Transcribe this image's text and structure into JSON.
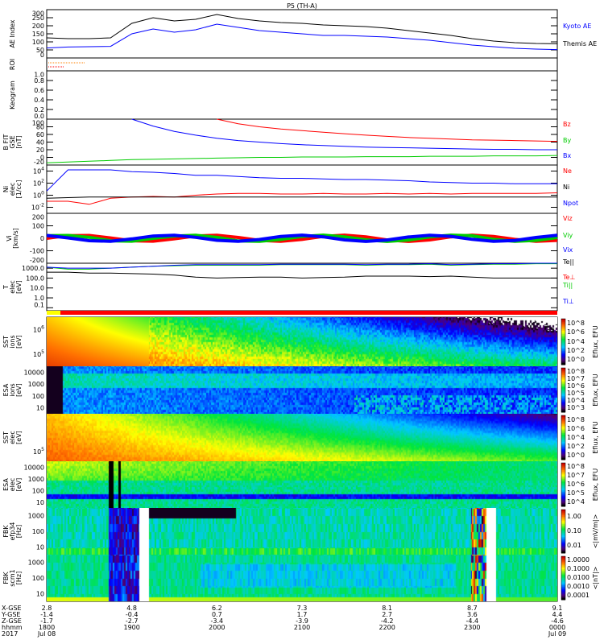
{
  "title": "P5 (TH-A)",
  "chart_data": {
    "type": "line",
    "x_label": "hhmm",
    "time_ticks": [
      "1800",
      "1900",
      "2000",
      "2100",
      "2200",
      "2300",
      "0000"
    ],
    "date_ticks": [
      "Jul 08",
      "",
      "",
      "",
      "",
      "",
      "Jul 09"
    ],
    "year": "2017",
    "orbit_rows": [
      {
        "label": "X-GSE",
        "values": [
          "2.8",
          "4.8",
          "6.2",
          "7.3",
          "8.1",
          "8.7",
          "9.1"
        ]
      },
      {
        "label": "Y-GSE",
        "values": [
          "-1.4",
          "-0.4",
          "0.7",
          "1.7",
          "2.7",
          "3.6",
          "4.4"
        ]
      },
      {
        "label": "Z-GSE",
        "values": [
          "-1.7",
          "-2.7",
          "-3.4",
          "-3.9",
          "-4.2",
          "-4.4",
          "-4.6"
        ]
      },
      {
        "label": "hhmm",
        "values": [
          "1800",
          "1900",
          "2000",
          "2100",
          "2200",
          "2300",
          "0000"
        ]
      },
      {
        "label": "2017",
        "values": [
          "Jul 08",
          "",
          "",
          "",
          "",
          "",
          "Jul 09"
        ]
      }
    ],
    "hours_x": [
      18,
      18.25,
      18.5,
      18.75,
      19,
      19.25,
      19.5,
      19.75,
      20,
      20.25,
      20.5,
      20.75,
      21,
      21.25,
      21.5,
      21.75,
      22,
      22.25,
      22.5,
      22.75,
      23,
      23.25,
      23.5,
      23.75,
      24
    ],
    "panels": [
      {
        "id": "ae",
        "ylabel": "AE Index",
        "scale": "lin",
        "ylim": [
          0,
          300
        ],
        "ticks": [
          "0",
          "50",
          "100",
          "150",
          "200",
          "250",
          "300"
        ],
        "series": [
          {
            "name": "Kyoto AE",
            "color": "#0000ff",
            "values": [
              62,
              68,
              70,
              72,
              150,
              180,
              160,
              175,
              210,
              190,
              170,
              160,
              150,
              140,
              140,
              135,
              130,
              120,
              110,
              95,
              80,
              70,
              60,
              55,
              52
            ]
          },
          {
            "name": "Themis AE",
            "color": "#000000",
            "values": [
              125,
              120,
              120,
              125,
              215,
              250,
              230,
              240,
              270,
              245,
              230,
              220,
              215,
              205,
              200,
              195,
              185,
              170,
              155,
              140,
              120,
              105,
              95,
              90,
              88
            ]
          }
        ]
      },
      {
        "id": "roi",
        "ylabel": "ROI",
        "scale": "lin",
        "ylim": [
          0,
          1
        ],
        "ticks": [],
        "series": []
      },
      {
        "id": "keogram",
        "ylabel": "Keogram",
        "scale": "lin",
        "ylim": [
          0,
          1
        ],
        "ticks": [
          "0.0",
          "0.2",
          "0.4",
          "0.6",
          "0.8",
          "1.0"
        ],
        "series": []
      },
      {
        "id": "bfit",
        "ylabel": "B FIT",
        "ylabel2": "GSE",
        "ylabel3": "[nT]",
        "scale": "lin",
        "ylim": [
          -20,
          100
        ],
        "ticks": [
          "-20",
          "0",
          "20",
          "40",
          "60",
          "80",
          "100"
        ],
        "series": [
          {
            "name": "Bz",
            "color": "#ff0000",
            "values": [
              null,
              null,
              null,
              null,
              null,
              null,
              null,
              null,
              100,
              88,
              80,
              74,
              70,
              66,
              62,
              58,
              55,
              52,
              50,
              48,
              46,
              45,
              44,
              43,
              42
            ]
          },
          {
            "name": "By",
            "color": "#00cc00",
            "values": [
              -14,
              -12,
              -10,
              -8,
              -6,
              -5,
              -4,
              -3,
              -2,
              -1,
              0,
              0,
              1,
              1,
              1,
              2,
              2,
              2,
              3,
              3,
              3,
              4,
              4,
              4,
              5
            ]
          },
          {
            "name": "Bx",
            "color": "#0000ff",
            "values": [
              null,
              null,
              null,
              null,
              100,
              82,
              68,
              58,
              50,
              44,
              40,
              36,
              33,
              31,
              29,
              27,
              26,
              25,
              24,
              23,
              22,
              21,
              21,
              20,
              20
            ]
          }
        ]
      },
      {
        "id": "ni",
        "ylabel": "Ni",
        "ylabel2": "elec",
        "ylabel3": "[1/cc]",
        "scale": "log",
        "ylim": [
          -3,
          5
        ],
        "ticks": [
          "10^-2",
          "10^0",
          "10^2",
          "10^4"
        ],
        "series": [
          {
            "name": "Ne",
            "color": "#ff0000",
            "values": [
              -1,
              -1,
              -1.5,
              -0.5,
              -0.3,
              -0.2,
              -0.3,
              0,
              0.2,
              0.3,
              0.3,
              0.2,
              0.2,
              0.3,
              0.2,
              0.2,
              0.3,
              0.2,
              0.3,
              0.2,
              0.3,
              0.3,
              0.3,
              0.3,
              0.4
            ]
          },
          {
            "name": "Ni",
            "color": "#000000",
            "values": [
              -0.5,
              -0.4,
              -0.3,
              -0.3,
              -0.3,
              -0.3,
              -0.3,
              -0.3,
              -0.3,
              -0.3,
              -0.3,
              -0.3,
              -0.3,
              -0.3,
              -0.3,
              -0.3,
              -0.3,
              -0.3,
              -0.3,
              -0.3,
              -0.3,
              -0.3,
              -0.3,
              -0.3,
              -0.3
            ]
          },
          {
            "name": "Npot",
            "color": "#0000ff",
            "values": [
              0.7,
              4.2,
              4.2,
              4.2,
              3.9,
              3.8,
              3.6,
              3.3,
              3.3,
              3.1,
              2.9,
              2.8,
              2.8,
              2.7,
              2.6,
              2.6,
              2.5,
              2.4,
              2.2,
              2.1,
              2.0,
              2.0,
              1.9,
              1.9,
              1.9
            ]
          }
        ]
      },
      {
        "id": "vi",
        "ylabel": "Vi",
        "ylabel2": "[km/s]",
        "scale": "lin",
        "ylim": [
          -200,
          200
        ],
        "ticks": [
          "-200",
          "-100",
          "0",
          "100",
          "200"
        ],
        "series": [
          {
            "name": "Viz",
            "color": "#ff0000",
            "values": [
              0,
              0,
              0,
              0,
              0,
              0,
              0,
              0,
              0,
              0,
              0,
              0,
              0,
              0,
              0,
              0,
              0,
              0,
              0,
              0,
              0,
              0,
              0,
              0,
              0
            ]
          },
          {
            "name": "Viy",
            "color": "#00cc00",
            "values": [
              0,
              0,
              5,
              0,
              0,
              5,
              0,
              0,
              0,
              -5,
              0,
              0,
              0,
              0,
              0,
              0,
              0,
              0,
              0,
              0,
              5,
              0,
              0,
              0,
              0
            ]
          },
          {
            "name": "Vix",
            "color": "#0000ff",
            "values": [
              0,
              0,
              0,
              0,
              0,
              0,
              0,
              0,
              0,
              0,
              0,
              0,
              0,
              0,
              0,
              0,
              0,
              0,
              0,
              0,
              0,
              0,
              0,
              0,
              0
            ]
          }
        ]
      },
      {
        "id": "t",
        "ylabel": "T",
        "ylabel2": "elec",
        "ylabel3": "[eV]",
        "scale": "log",
        "ylim": [
          -1.3,
          3.5
        ],
        "ticks": [
          "0.1",
          "1.0",
          "10.0",
          "100.0",
          "1000.0"
        ],
        "series": [
          {
            "name": "Te||",
            "color": "#000000",
            "values": [
              2.6,
              2.6,
              2.5,
              2.5,
              2.45,
              2.4,
              2.3,
              2.1,
              2.0,
              2.05,
              2.1,
              2.1,
              2.0,
              2.05,
              2.1,
              2.2,
              2.2,
              2.2,
              2.15,
              2.2,
              2.1,
              2.0,
              2.0,
              2.0,
              2.0
            ]
          },
          {
            "name": "Te⊥",
            "color": "#ff0000",
            "values": [
              null,
              null,
              null,
              null,
              null,
              null,
              null,
              null,
              null,
              null,
              null,
              null,
              null,
              null,
              null,
              null,
              null,
              null,
              null,
              null,
              null,
              null,
              null,
              null,
              null
            ]
          },
          {
            "name": "Ti||",
            "color": "#00cc00",
            "values": [
              3.1,
              2.9,
              2.9,
              3.0,
              3.1,
              3.2,
              3.25,
              3.3,
              3.3,
              3.3,
              3.3,
              3.35,
              3.35,
              3.35,
              3.35,
              3.3,
              3.35,
              3.35,
              3.4,
              3.3,
              3.35,
              3.4,
              3.4,
              3.45,
              3.45
            ]
          },
          {
            "name": "Ti⊥",
            "color": "#0000ff",
            "values": [
              3.1,
              3.0,
              3.0,
              3.0,
              3.1,
              3.2,
              3.3,
              3.35,
              3.35,
              3.35,
              3.35,
              3.4,
              3.4,
              3.4,
              3.4,
              3.35,
              3.4,
              3.4,
              3.45,
              3.35,
              3.4,
              3.45,
              3.45,
              3.5,
              3.5
            ]
          }
        ]
      }
    ],
    "spectrograms": [
      {
        "id": "sst-ions",
        "ylabel": "SST",
        "ylabel2": "ions",
        "ylabel3": "[eV]",
        "yticks": [
          "10^5",
          "10^6"
        ],
        "cbar": "Eflux, EFU",
        "cticks": [
          "10^0",
          "10^2",
          "10^4",
          "10^6",
          "10^8"
        ]
      },
      {
        "id": "esa-ions",
        "ylabel": "ESA",
        "ylabel2": "ions",
        "ylabel3": "[eV]",
        "yticks": [
          "10",
          "100",
          "1000",
          "10000"
        ],
        "cbar": "Eflux, EFU",
        "cticks": [
          "10^3",
          "10^4",
          "10^5",
          "10^6",
          "10^7",
          "10^8"
        ]
      },
      {
        "id": "sst-elec",
        "ylabel": "SST",
        "ylabel2": "elec",
        "ylabel3": "[eV]",
        "yticks": [
          "10^5"
        ],
        "cbar": "Eflux, EFU",
        "cticks": [
          "10^0",
          "10^2",
          "10^4",
          "10^6",
          "10^8"
        ]
      },
      {
        "id": "esa-elec",
        "ylabel": "ESA",
        "ylabel2": "elec",
        "ylabel3": "[eV]",
        "yticks": [
          "10",
          "100",
          "1000",
          "10000"
        ],
        "cbar": "Eflux, EFU",
        "cticks": [
          "10^4",
          "10^5",
          "10^6",
          "10^7",
          "10^8"
        ]
      },
      {
        "id": "fbk-efp",
        "ylabel": "FBK",
        "ylabel2": "efp34",
        "ylabel3": "[Hz]",
        "yticks": [
          "10",
          "100",
          "1000"
        ],
        "cbar": "<|mV/m|>",
        "cticks": [
          "0.01",
          "0.10",
          "1.00"
        ]
      },
      {
        "id": "fbk-scm",
        "ylabel": "FBK",
        "ylabel2": "scm1",
        "ylabel3": "[Hz]",
        "yticks": [
          "10",
          "100",
          "1000"
        ],
        "cbar": "<|nT|>",
        "cticks": [
          "0.0001",
          "0.0010",
          "0.0100",
          "0.1000",
          "1.0000"
        ]
      }
    ]
  }
}
